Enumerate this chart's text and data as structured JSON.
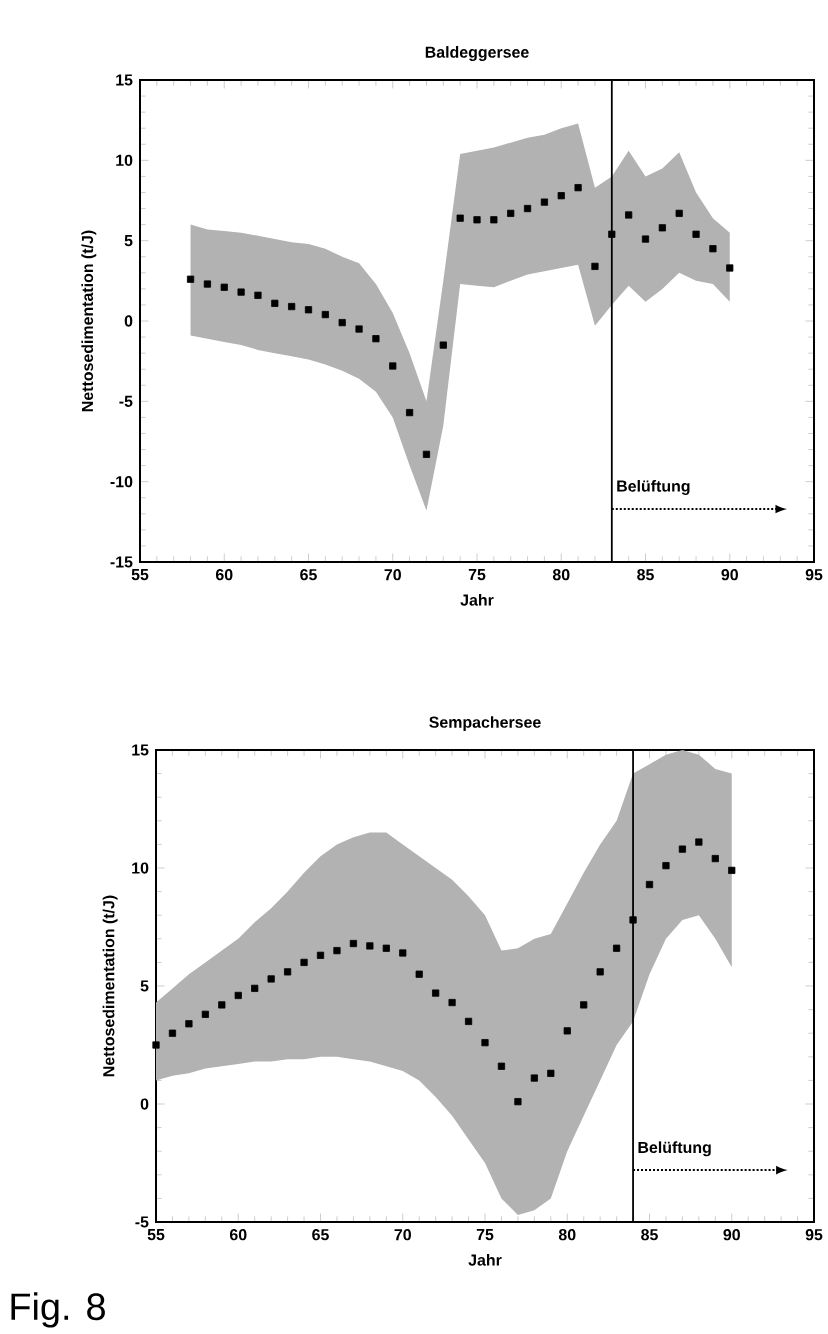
{
  "chart_data": [
    {
      "type": "scatter",
      "title": "Baldeggersee",
      "xlabel": "Jahr",
      "ylabel": "Nettosedimentation   (t/J)",
      "xlim": [
        55,
        95
      ],
      "xticks": [
        55,
        60,
        65,
        70,
        75,
        80,
        85,
        90,
        95
      ],
      "ylim": [
        -15,
        15
      ],
      "yticks": [
        -15,
        -10,
        -5,
        0,
        5,
        10,
        15
      ],
      "marker": "square",
      "grid": false,
      "x": [
        58,
        59,
        60,
        61,
        62,
        63,
        64,
        65,
        66,
        67,
        68,
        69,
        70,
        71,
        72,
        73,
        74,
        75,
        76,
        77,
        78,
        79,
        80,
        81,
        82,
        83,
        84,
        85,
        86,
        87,
        88,
        89,
        90
      ],
      "series": [
        {
          "color": "#000000",
          "values": [
            2.6,
            2.3,
            2.1,
            1.8,
            1.6,
            1.1,
            0.9,
            0.7,
            0.4,
            -0.1,
            -0.5,
            -1.1,
            -2.8,
            -5.7,
            -8.3,
            -1.5,
            6.4,
            6.3,
            6.3,
            6.7,
            7.0,
            7.4,
            7.8,
            8.3,
            3.4,
            5.4,
            6.6,
            5.1,
            5.8,
            6.7,
            5.4,
            4.5,
            3.3
          ],
          "upper": [
            6.0,
            5.7,
            5.6,
            5.5,
            5.3,
            5.1,
            4.9,
            4.8,
            4.5,
            4.0,
            3.6,
            2.3,
            0.5,
            -2.0,
            -5.0,
            2.5,
            10.4,
            10.6,
            10.8,
            11.1,
            11.4,
            11.6,
            12.0,
            12.3,
            8.3,
            9.0,
            10.6,
            9.0,
            9.5,
            10.5,
            8.0,
            6.4,
            5.5
          ],
          "lower": [
            -0.9,
            -1.1,
            -1.3,
            -1.5,
            -1.8,
            -2.0,
            -2.2,
            -2.4,
            -2.7,
            -3.1,
            -3.6,
            -4.4,
            -6.0,
            -9.0,
            -11.8,
            -6.5,
            2.3,
            2.2,
            2.1,
            2.5,
            2.9,
            3.1,
            3.3,
            3.5,
            -0.3,
            1.0,
            2.2,
            1.2,
            2.0,
            3.0,
            2.5,
            2.3,
            1.2
          ]
        }
      ],
      "ref_lines": [
        {
          "axis": "x",
          "value": 83,
          "label": "Belüftung",
          "color": "#000000"
        }
      ]
    },
    {
      "type": "scatter",
      "title": "Sempachersee",
      "xlabel": "Jahr",
      "ylabel": "Nettosedimentation   (t/J)",
      "xlim": [
        55,
        95
      ],
      "xticks": [
        55,
        60,
        65,
        70,
        75,
        80,
        85,
        90,
        95
      ],
      "ylim": [
        -5,
        15
      ],
      "yticks": [
        -5,
        0,
        5,
        10,
        15
      ],
      "marker": "square",
      "grid": false,
      "x": [
        55,
        56,
        57,
        58,
        59,
        60,
        61,
        62,
        63,
        64,
        65,
        66,
        67,
        68,
        69,
        70,
        71,
        72,
        73,
        74,
        75,
        76,
        77,
        78,
        79,
        80,
        81,
        82,
        83,
        84,
        85,
        86,
        87,
        88,
        89,
        90
      ],
      "series": [
        {
          "color": "#000000",
          "values": [
            2.5,
            3.0,
            3.4,
            3.8,
            4.2,
            4.6,
            4.9,
            5.3,
            5.6,
            6.0,
            6.3,
            6.5,
            6.8,
            6.7,
            6.6,
            6.4,
            5.5,
            4.7,
            4.3,
            3.5,
            2.6,
            1.6,
            0.1,
            1.1,
            1.3,
            3.1,
            4.2,
            5.6,
            6.6,
            7.8,
            9.3,
            10.1,
            10.8,
            11.1,
            10.4,
            9.9
          ],
          "upper": [
            4.3,
            4.9,
            5.5,
            6.0,
            6.5,
            7.0,
            7.7,
            8.3,
            9.0,
            9.8,
            10.5,
            11.0,
            11.3,
            11.5,
            11.5,
            11.0,
            10.5,
            10.0,
            9.5,
            8.8,
            8.0,
            6.5,
            6.6,
            7.0,
            7.2,
            8.5,
            9.8,
            11.0,
            12.0,
            14.0,
            14.4,
            14.8,
            15.0,
            14.8,
            14.2,
            14.0
          ],
          "lower": [
            1.0,
            1.2,
            1.3,
            1.5,
            1.6,
            1.7,
            1.8,
            1.8,
            1.9,
            1.9,
            2.0,
            2.0,
            1.9,
            1.8,
            1.6,
            1.4,
            1.0,
            0.3,
            -0.5,
            -1.5,
            -2.5,
            -4.0,
            -4.7,
            -4.5,
            -4.0,
            -2.0,
            -0.5,
            1.0,
            2.5,
            3.5,
            5.5,
            7.0,
            7.8,
            8.0,
            7.0,
            5.8
          ]
        }
      ],
      "ref_lines": [
        {
          "axis": "x",
          "value": 84,
          "label": "Belüftung",
          "color": "#000000"
        }
      ],
      "annotations": [
        "Fig. 8"
      ]
    }
  ]
}
